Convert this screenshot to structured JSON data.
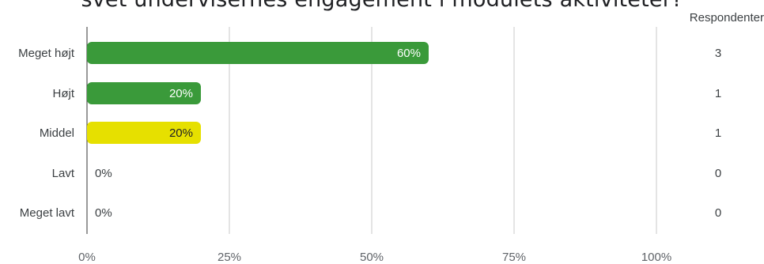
{
  "chart_data": {
    "type": "bar",
    "orientation": "horizontal",
    "title": "Niveauet for niveauet af omfanget af graden i hvilken eleverne følte sig engageret: Niveauet af graden af engagement blandt undervisernes / kursisternes: niveauet af omfanget af undervisernes engagement i modulets aktiviteter?",
    "title_visible": "svet undervisernes engagement i modulets aktiviteter?",
    "categories": [
      "Meget højt",
      "Højt",
      "Middel",
      "Lavt",
      "Meget lavt"
    ],
    "values": [
      60,
      20,
      20,
      0,
      0
    ],
    "value_labels": [
      "60%",
      "20%",
      "20%",
      "0%",
      "0%"
    ],
    "respondents_header": "Respondenter",
    "respondents": [
      "3",
      "1",
      "1",
      "0",
      "0"
    ],
    "bar_colors": [
      "#3a9a3a",
      "#3a9a3a",
      "#e6e000",
      "#3a9a3a",
      "#3a9a3a"
    ],
    "xlim": [
      0,
      100
    ],
    "xticks": [
      "0%",
      "25%",
      "50%",
      "75%",
      "100%"
    ],
    "grid": true
  }
}
